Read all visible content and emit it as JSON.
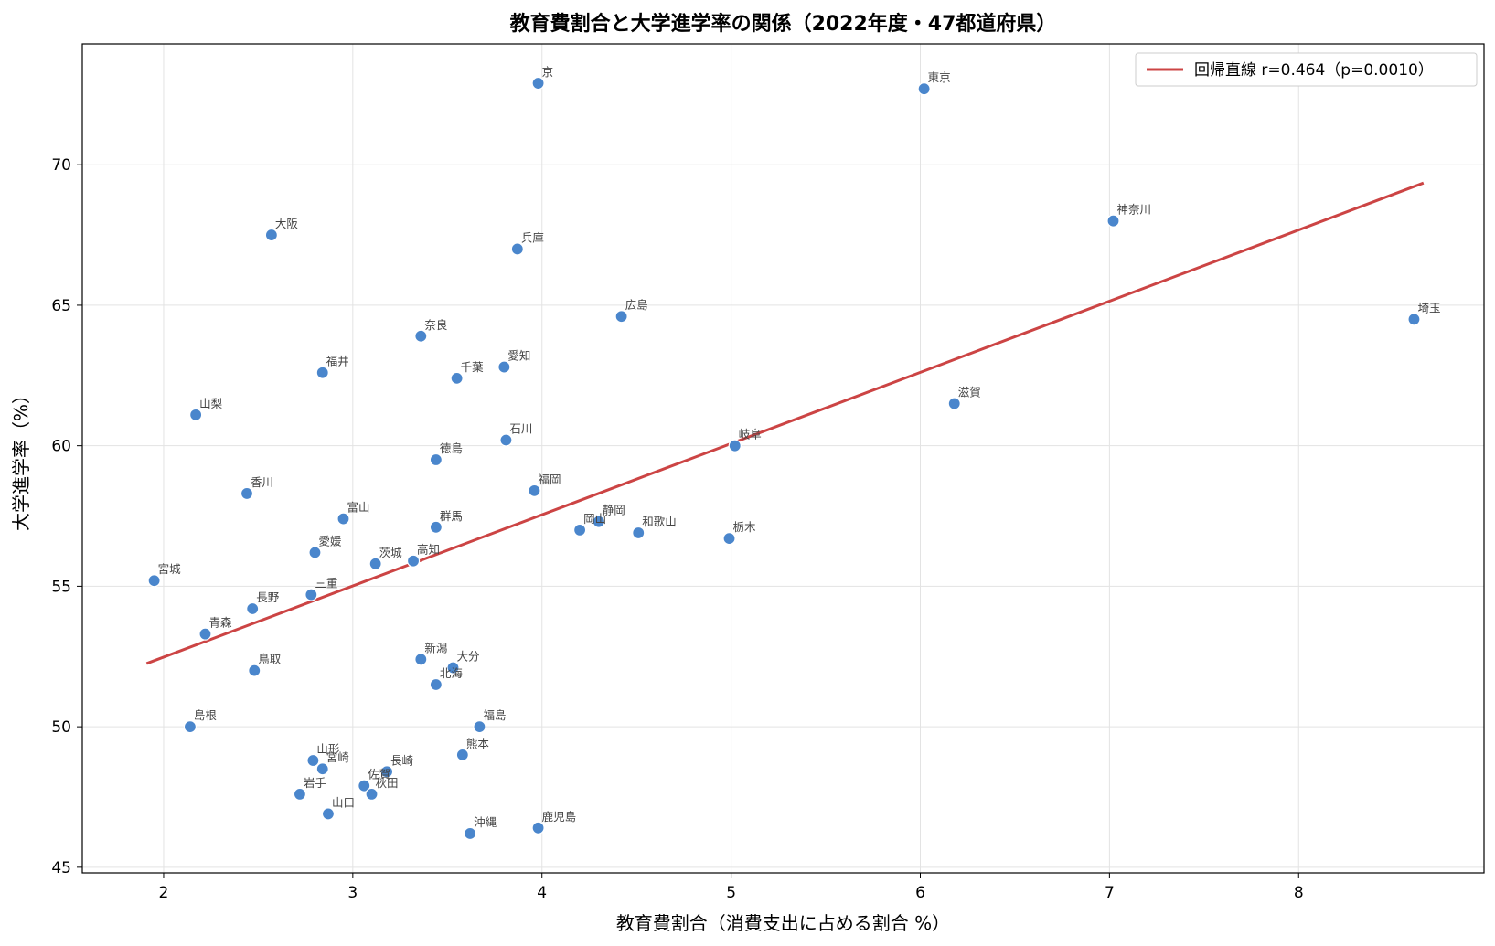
{
  "chart_data": {
    "type": "scatter",
    "title": "教育費割合と大学進学率の関係（2022年度・47都道府県）",
    "xlabel": "教育費割合（消費支出に占める割合 %）",
    "ylabel": "大学進学率（%）",
    "xlim": [
      1.57,
      8.98
    ],
    "ylim": [
      44.8,
      74.3
    ],
    "xticks": [
      2,
      3,
      4,
      5,
      6,
      7,
      8
    ],
    "yticks": [
      45,
      50,
      55,
      60,
      65,
      70
    ],
    "grid": true,
    "legend_position": "top-right",
    "point_color": "#4a86cc",
    "line_color": "#cc4444",
    "regression": {
      "label": "回帰直線  r=0.464（p=0.0010）",
      "x": [
        1.91,
        8.66
      ],
      "y": [
        52.25,
        69.35
      ]
    },
    "points": [
      {
        "label": "京",
        "x": 3.98,
        "y": 72.9
      },
      {
        "label": "東京",
        "x": 6.02,
        "y": 72.7
      },
      {
        "label": "神奈川",
        "x": 7.02,
        "y": 68.0
      },
      {
        "label": "大阪",
        "x": 2.57,
        "y": 67.5
      },
      {
        "label": "兵庫",
        "x": 3.87,
        "y": 67.0
      },
      {
        "label": "広島",
        "x": 4.42,
        "y": 64.6
      },
      {
        "label": "埼玉",
        "x": 8.61,
        "y": 64.5
      },
      {
        "label": "奈良",
        "x": 3.36,
        "y": 63.9
      },
      {
        "label": "愛知",
        "x": 3.8,
        "y": 62.8
      },
      {
        "label": "福井",
        "x": 2.84,
        "y": 62.6
      },
      {
        "label": "千葉",
        "x": 3.55,
        "y": 62.4
      },
      {
        "label": "滋賀",
        "x": 6.18,
        "y": 61.5
      },
      {
        "label": "山梨",
        "x": 2.17,
        "y": 61.1
      },
      {
        "label": "石川",
        "x": 3.81,
        "y": 60.2
      },
      {
        "label": "岐阜",
        "x": 5.02,
        "y": 60.0
      },
      {
        "label": "徳島",
        "x": 3.44,
        "y": 59.5
      },
      {
        "label": "福岡",
        "x": 3.96,
        "y": 58.4
      },
      {
        "label": "香川",
        "x": 2.44,
        "y": 58.3
      },
      {
        "label": "富山",
        "x": 2.95,
        "y": 57.4
      },
      {
        "label": "静岡",
        "x": 4.3,
        "y": 57.3
      },
      {
        "label": "群馬",
        "x": 3.44,
        "y": 57.1
      },
      {
        "label": "岡山",
        "x": 4.2,
        "y": 57.0
      },
      {
        "label": "和歌山",
        "x": 4.51,
        "y": 56.9
      },
      {
        "label": "栃木",
        "x": 4.99,
        "y": 56.7
      },
      {
        "label": "愛媛",
        "x": 2.8,
        "y": 56.2
      },
      {
        "label": "高知",
        "x": 3.32,
        "y": 55.9
      },
      {
        "label": "茨城",
        "x": 3.12,
        "y": 55.8
      },
      {
        "label": "宮城",
        "x": 1.95,
        "y": 55.2
      },
      {
        "label": "三重",
        "x": 2.78,
        "y": 54.7
      },
      {
        "label": "長野",
        "x": 2.47,
        "y": 54.2
      },
      {
        "label": "青森",
        "x": 2.22,
        "y": 53.3
      },
      {
        "label": "新潟",
        "x": 3.36,
        "y": 52.4
      },
      {
        "label": "大分",
        "x": 3.53,
        "y": 52.1
      },
      {
        "label": "鳥取",
        "x": 2.48,
        "y": 52.0
      },
      {
        "label": "北海",
        "x": 3.44,
        "y": 51.5
      },
      {
        "label": "福島",
        "x": 3.67,
        "y": 50.0
      },
      {
        "label": "島根",
        "x": 2.14,
        "y": 50.0
      },
      {
        "label": "熊本",
        "x": 3.58,
        "y": 49.0
      },
      {
        "label": "山形",
        "x": 2.79,
        "y": 48.8
      },
      {
        "label": "宮崎",
        "x": 2.84,
        "y": 48.5
      },
      {
        "label": "長崎",
        "x": 3.18,
        "y": 48.4
      },
      {
        "label": "佐賀",
        "x": 3.06,
        "y": 47.9
      },
      {
        "label": "秋田",
        "x": 3.1,
        "y": 47.6
      },
      {
        "label": "岩手",
        "x": 2.72,
        "y": 47.6
      },
      {
        "label": "山口",
        "x": 2.87,
        "y": 46.9
      },
      {
        "label": "鹿児島",
        "x": 3.98,
        "y": 46.4
      },
      {
        "label": "沖縄",
        "x": 3.62,
        "y": 46.2
      }
    ]
  }
}
